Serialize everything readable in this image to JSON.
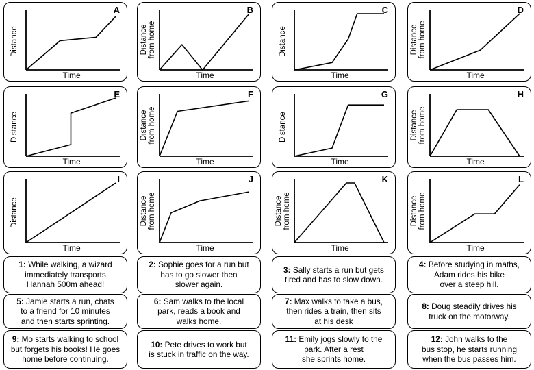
{
  "chart_data": [
    {
      "type": "line",
      "id": "A",
      "ylabel": "Distance",
      "xlabel": "Time",
      "points": [
        [
          0,
          0
        ],
        [
          0.38,
          0.52
        ],
        [
          0.78,
          0.58
        ],
        [
          1,
          0.95
        ]
      ]
    },
    {
      "type": "line",
      "id": "B",
      "ylabel": "Distance from home",
      "xlabel": "Time",
      "points": [
        [
          0,
          0
        ],
        [
          0.25,
          0.45
        ],
        [
          0.48,
          0
        ],
        [
          1,
          1
        ]
      ]
    },
    {
      "type": "line",
      "id": "C",
      "ylabel": "Distance",
      "xlabel": "Time",
      "points": [
        [
          0,
          0
        ],
        [
          0.42,
          0.13
        ],
        [
          0.6,
          0.55
        ],
        [
          0.7,
          1
        ],
        [
          1,
          1
        ]
      ]
    },
    {
      "type": "line",
      "id": "D",
      "ylabel": "Distance from home",
      "xlabel": "Time",
      "points": [
        [
          0,
          0
        ],
        [
          0.56,
          0.35
        ],
        [
          1,
          1
        ]
      ]
    },
    {
      "type": "line",
      "id": "E",
      "ylabel": "Distance",
      "xlabel": "Time",
      "points": [
        [
          0,
          0
        ],
        [
          0.5,
          0.2
        ],
        [
          0.5,
          0.74
        ],
        [
          1,
          1
        ]
      ]
    },
    {
      "type": "line",
      "id": "F",
      "ylabel": "Distance from home",
      "xlabel": "Time",
      "points": [
        [
          0,
          0
        ],
        [
          0.2,
          0.77
        ],
        [
          1,
          0.95
        ]
      ]
    },
    {
      "type": "line",
      "id": "G",
      "ylabel": "Distance",
      "xlabel": "Time",
      "points": [
        [
          0,
          0
        ],
        [
          0.42,
          0.14
        ],
        [
          0.6,
          0.88
        ],
        [
          1,
          0.88
        ]
      ]
    },
    {
      "type": "line",
      "id": "H",
      "ylabel": "Distance from home",
      "xlabel": "Time",
      "points": [
        [
          0,
          0
        ],
        [
          0.3,
          0.8
        ],
        [
          0.65,
          0.8
        ],
        [
          1,
          0
        ]
      ]
    },
    {
      "type": "line",
      "id": "I",
      "ylabel": "Distance",
      "xlabel": "Time",
      "points": [
        [
          0,
          0
        ],
        [
          1,
          1
        ]
      ]
    },
    {
      "type": "line",
      "id": "J",
      "ylabel": "Distance from home",
      "xlabel": "Time",
      "points": [
        [
          0,
          0
        ],
        [
          0.13,
          0.5
        ],
        [
          0.45,
          0.7
        ],
        [
          1,
          0.85
        ]
      ]
    },
    {
      "type": "line",
      "id": "K",
      "ylabel": "Distance from home",
      "xlabel": "Time",
      "points": [
        [
          0,
          0
        ],
        [
          0.58,
          1
        ],
        [
          0.67,
          1
        ],
        [
          1,
          0
        ]
      ]
    },
    {
      "type": "line",
      "id": "L",
      "ylabel": "Distance from home",
      "xlabel": "Time",
      "points": [
        [
          0,
          0
        ],
        [
          0.5,
          0.48
        ],
        [
          0.72,
          0.48
        ],
        [
          1,
          0.97
        ]
      ]
    }
  ],
  "descriptions": [
    {
      "num": "1:",
      "lines": [
        "While walking, a wizard",
        "immediately transports",
        "Hannah 500m ahead!"
      ]
    },
    {
      "num": "2:",
      "lines": [
        "Sophie goes for a run but",
        "has to go slower then",
        "slower again."
      ]
    },
    {
      "num": "3:",
      "lines": [
        "Sally starts a run but gets",
        "tired and has to slow down."
      ]
    },
    {
      "num": "4:",
      "lines": [
        "Before studying in maths,",
        "Adam rides his bike",
        "over a steep hill."
      ]
    },
    {
      "num": "5:",
      "lines": [
        "Jamie starts a run, chats",
        "to a friend for 10 minutes",
        "and then starts sprinting."
      ]
    },
    {
      "num": "6:",
      "lines": [
        "Sam walks to the local",
        "park, reads a book and",
        "walks home."
      ]
    },
    {
      "num": "7:",
      "lines": [
        "Max walks to take a bus,",
        "then rides a train, then sits",
        "at his desk"
      ]
    },
    {
      "num": "8:",
      "lines": [
        "Doug steadily drives his",
        "truck on the motorway."
      ]
    },
    {
      "num": "9:",
      "lines": [
        "Mo starts walking to school",
        "but forgets his books! He goes",
        "home before continuing."
      ]
    },
    {
      "num": "10:",
      "lines": [
        "Pete drives to work but",
        "is stuck in traffic on the way."
      ]
    },
    {
      "num": "11:",
      "lines": [
        "Emily jogs slowly to the",
        "park. After a rest",
        "she sprints home."
      ]
    },
    {
      "num": "12:",
      "lines": [
        "John walks to the",
        "bus stop, he starts running",
        "when the bus passes him."
      ]
    }
  ]
}
